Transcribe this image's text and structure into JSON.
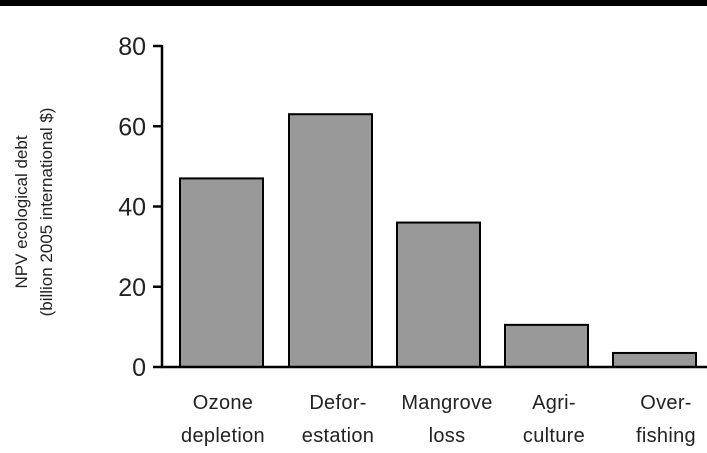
{
  "chart_data": {
    "type": "bar",
    "categories": [
      [
        "Ozone",
        "depletion"
      ],
      [
        "Defor-",
        "estation"
      ],
      [
        "Mangrove",
        "loss"
      ],
      [
        "Agri-",
        "culture"
      ],
      [
        "Over-",
        "fishing"
      ]
    ],
    "values": [
      47,
      63,
      36,
      10.5,
      3.5
    ],
    "ylabel": [
      "NPV ecological debt",
      "(billion 2005 international $)"
    ],
    "ylim": [
      0,
      80
    ],
    "yticks": [
      "0",
      "20",
      "40",
      "60",
      "80"
    ],
    "grid": false,
    "legend": "none",
    "colors": {
      "bar_fill": "#999999",
      "bar_stroke": "#000000",
      "axis": "#000000",
      "top_rule": "#000000"
    }
  }
}
